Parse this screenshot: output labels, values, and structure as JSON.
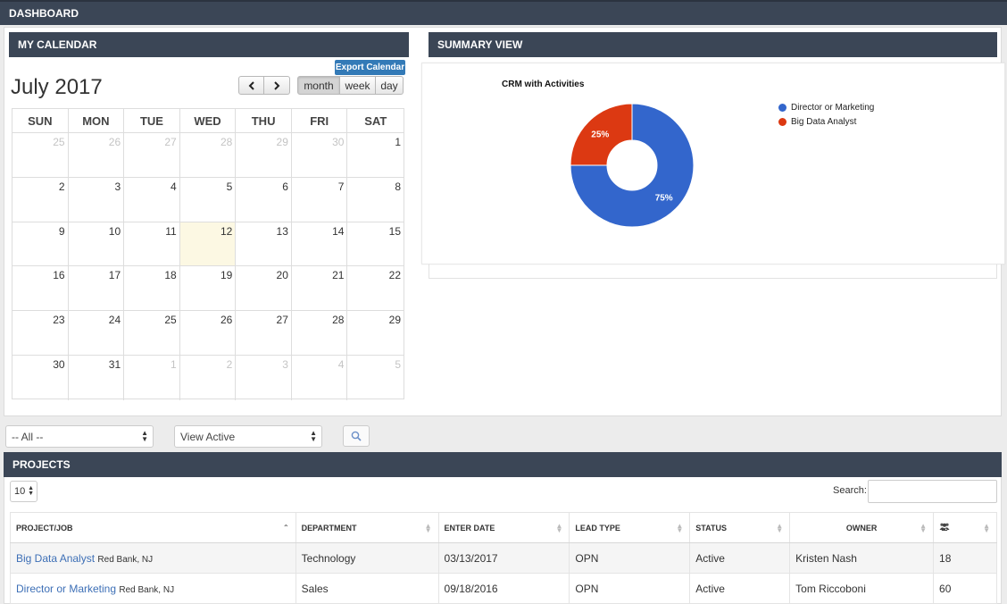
{
  "header": {
    "title": "DASHBOARD"
  },
  "calendar": {
    "heading": "MY CALENDAR",
    "export_label": "Export Calendar",
    "title": "July 2017",
    "prev_label": "‹",
    "next_label": "›",
    "view_month": "month",
    "view_week": "week",
    "view_day": "day",
    "weekdays": [
      "SUN",
      "MON",
      "TUE",
      "WED",
      "THU",
      "FRI",
      "SAT"
    ],
    "weeks": [
      [
        "25",
        "26",
        "27",
        "28",
        "29",
        "30",
        "1"
      ],
      [
        "2",
        "3",
        "4",
        "5",
        "6",
        "7",
        "8"
      ],
      [
        "9",
        "10",
        "11",
        "12",
        "13",
        "14",
        "15"
      ],
      [
        "16",
        "17",
        "18",
        "19",
        "20",
        "21",
        "22"
      ],
      [
        "23",
        "24",
        "25",
        "26",
        "27",
        "28",
        "29"
      ],
      [
        "30",
        "31",
        "1",
        "2",
        "3",
        "4",
        "5"
      ]
    ]
  },
  "summary": {
    "heading": "SUMMARY VIEW",
    "legend": [
      {
        "label": "Director or Marketing"
      },
      {
        "label": "Big Data Analyst"
      }
    ]
  },
  "chart_data": {
    "type": "pie",
    "title": "CRM with Activities",
    "categories": [
      "Director or Marketing",
      "Big Data Analyst"
    ],
    "values": [
      75,
      25
    ],
    "data_labels": [
      "75%",
      "25%"
    ],
    "colors": [
      "#3366cc",
      "#dc3912"
    ],
    "donut": true,
    "legend_position": "right"
  },
  "filters": {
    "all_value": "-- All --",
    "active_value": "View Active",
    "search_icon": "search-icon"
  },
  "projects": {
    "heading": "PROJECTS",
    "page_size": "10",
    "search_label": "Search:",
    "columns": [
      "PROJECT/JOB",
      "DEPARTMENT",
      "ENTER DATE",
      "LEAD TYPE",
      "STATUS",
      "OWNER"
    ],
    "group_icon": "users-icon",
    "rows": [
      {
        "project": "Big Data Analyst",
        "location": "Red Bank, NJ",
        "department": "Technology",
        "date": "03/13/2017",
        "lead": "OPN",
        "status": "Active",
        "owner": "Kristen Nash",
        "count": "18"
      },
      {
        "project": "Director or Marketing",
        "location": "Red Bank, NJ",
        "department": "Sales",
        "date": "09/18/2016",
        "lead": "OPN",
        "status": "Active",
        "owner": "Tom Riccoboni",
        "count": "60"
      }
    ]
  }
}
